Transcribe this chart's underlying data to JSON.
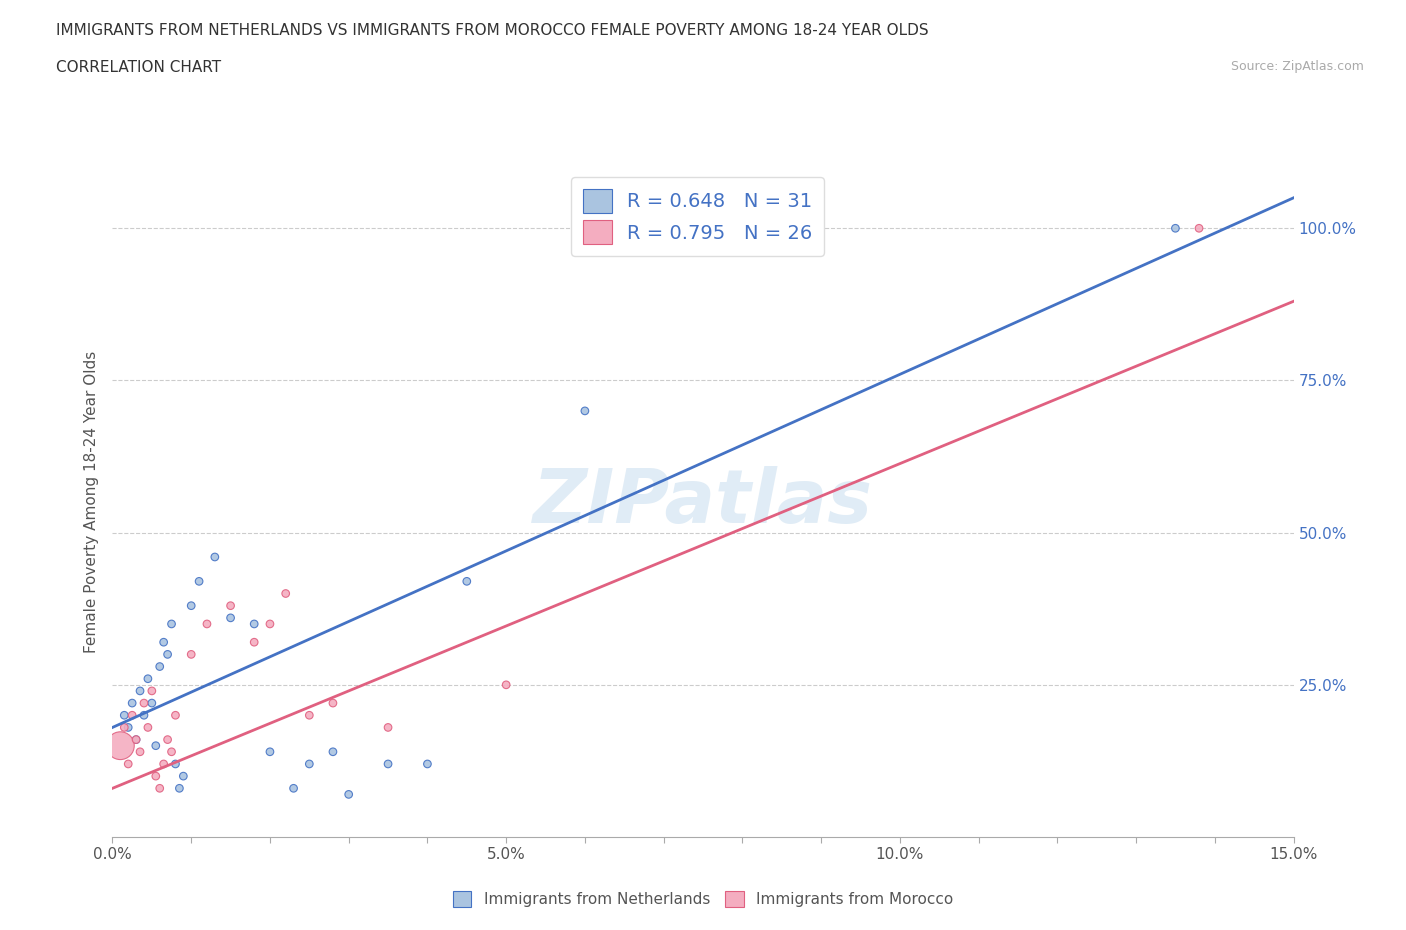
{
  "title": "IMMIGRANTS FROM NETHERLANDS VS IMMIGRANTS FROM MOROCCO FEMALE POVERTY AMONG 18-24 YEAR OLDS",
  "subtitle": "CORRELATION CHART",
  "source": "Source: ZipAtlas.com",
  "xlabel_blue": "Immigrants from Netherlands",
  "xlabel_pink": "Immigrants from Morocco",
  "ylabel": "Female Poverty Among 18-24 Year Olds",
  "xlim": [
    0.0,
    15.0
  ],
  "ylim": [
    0.0,
    110.0
  ],
  "xticks": [
    0.0,
    1.0,
    2.0,
    3.0,
    4.0,
    5.0,
    6.0,
    7.0,
    8.0,
    9.0,
    10.0,
    11.0,
    12.0,
    13.0,
    14.0,
    15.0
  ],
  "xtick_labels": [
    "0.0%",
    "",
    "",
    "",
    "",
    "5.0%",
    "",
    "",
    "",
    "",
    "10.0%",
    "",
    "",
    "",
    "",
    "15.0%"
  ],
  "yticks_right": [
    25.0,
    50.0,
    75.0,
    100.0
  ],
  "blue_R": 0.648,
  "blue_N": 31,
  "pink_R": 0.795,
  "pink_N": 26,
  "blue_color": "#aac4e0",
  "pink_color": "#f4adc0",
  "blue_line_color": "#4472c4",
  "pink_line_color": "#e06080",
  "legend_text_color": "#4472c4",
  "watermark_text": "ZIPatlas",
  "blue_line_x0": 0.0,
  "blue_line_y0": 18.0,
  "blue_line_x1": 15.0,
  "blue_line_y1": 105.0,
  "pink_line_x0": 0.0,
  "pink_line_y0": 8.0,
  "pink_line_x1": 15.0,
  "pink_line_y1": 88.0,
  "blue_x": [
    0.15,
    0.2,
    0.25,
    0.3,
    0.35,
    0.4,
    0.45,
    0.5,
    0.55,
    0.6,
    0.65,
    0.7,
    0.75,
    0.8,
    0.85,
    0.9,
    1.0,
    1.1,
    1.3,
    1.5,
    1.8,
    2.0,
    2.3,
    2.5,
    2.8,
    3.0,
    3.5,
    4.0,
    4.5,
    6.0,
    13.5
  ],
  "blue_y": [
    20,
    18,
    22,
    16,
    24,
    20,
    26,
    22,
    15,
    28,
    32,
    30,
    35,
    12,
    8,
    10,
    38,
    42,
    46,
    36,
    35,
    14,
    8,
    12,
    14,
    7,
    12,
    12,
    42,
    70,
    100
  ],
  "blue_size": [
    30,
    30,
    30,
    30,
    30,
    30,
    30,
    30,
    30,
    30,
    30,
    30,
    30,
    30,
    30,
    30,
    30,
    30,
    30,
    30,
    30,
    30,
    30,
    30,
    30,
    30,
    30,
    30,
    30,
    30,
    30
  ],
  "pink_x": [
    0.1,
    0.15,
    0.2,
    0.25,
    0.3,
    0.35,
    0.4,
    0.45,
    0.5,
    0.55,
    0.6,
    0.65,
    0.7,
    0.75,
    0.8,
    1.0,
    1.2,
    1.5,
    1.8,
    2.0,
    2.2,
    2.5,
    2.8,
    3.5,
    5.0,
    13.8
  ],
  "pink_y": [
    15,
    18,
    12,
    20,
    16,
    14,
    22,
    18,
    24,
    10,
    8,
    12,
    16,
    14,
    20,
    30,
    35,
    38,
    32,
    35,
    40,
    20,
    22,
    18,
    25,
    100
  ],
  "pink_size": [
    400,
    30,
    30,
    30,
    30,
    30,
    30,
    30,
    30,
    30,
    30,
    30,
    30,
    30,
    30,
    30,
    30,
    30,
    30,
    30,
    30,
    30,
    30,
    30,
    30,
    30
  ]
}
